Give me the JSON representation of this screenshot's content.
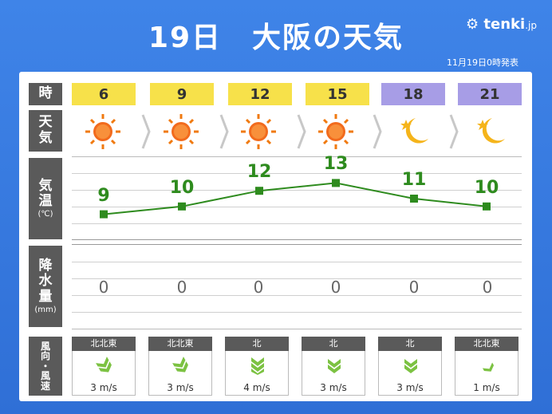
{
  "header": {
    "title": "19日　大阪の天気",
    "logo_text": "tenki",
    "logo_suffix": ".jp",
    "issued": "11月19日0時発表"
  },
  "labels": {
    "time": "時",
    "weather_1": "天",
    "weather_2": "気",
    "temp_1": "気",
    "temp_2": "温",
    "temp_unit": "(℃)",
    "precip_1": "降",
    "precip_2": "水",
    "precip_3": "量",
    "precip_unit": "(mm)",
    "wind_1": "風",
    "wind_2": "向",
    "wind_3": "・",
    "wind_4": "風",
    "wind_5": "速"
  },
  "colors": {
    "day_header": "#f7e14a",
    "night_header": "#a79de6",
    "temp_line": "#2e8b1e",
    "wind_arrow": "#7cc242"
  },
  "chart_data": {
    "type": "line",
    "x": [
      "6",
      "9",
      "12",
      "15",
      "18",
      "21"
    ],
    "series": [
      {
        "values": [
          9,
          10,
          12,
          13,
          11,
          10
        ]
      }
    ],
    "ylim": [
      6,
      16
    ],
    "precipitation": [
      "0",
      "0",
      "0",
      "0",
      "0",
      "0"
    ],
    "weather": [
      "sun-icon",
      "sun-icon",
      "sun-icon",
      "sun-icon",
      "moon-star-icon",
      "moon-star-icon"
    ],
    "period": [
      "day",
      "day",
      "day",
      "day",
      "night",
      "night"
    ],
    "wind_direction": [
      "北北東",
      "北北東",
      "北",
      "北",
      "北",
      "北北東"
    ],
    "wind_speed": [
      "3 m/s",
      "3 m/s",
      "4 m/s",
      "3 m/s",
      "3 m/s",
      "1 m/s"
    ]
  }
}
